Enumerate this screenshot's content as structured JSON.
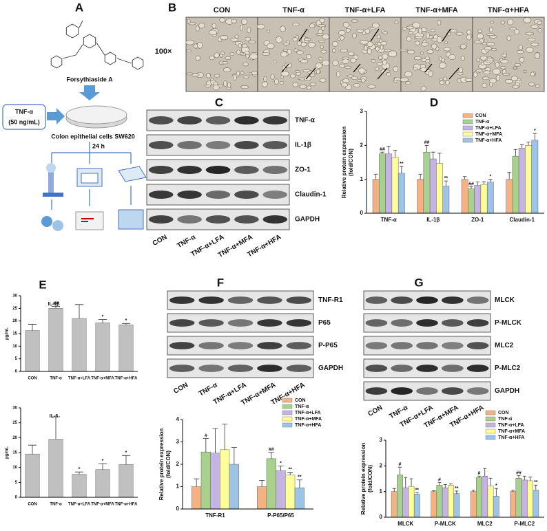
{
  "panel_a": {
    "label": "A",
    "compound": "Forsythiaside A",
    "treatment": "TNF-α",
    "dose": "(50 ng/mL)",
    "cells": "Colon epithelial cells SW620",
    "time": "24 h"
  },
  "panel_b": {
    "label": "B",
    "magnification": "100×",
    "groups": [
      "CON",
      "TNF-α",
      "TNF-α+LFA",
      "TNF-α+MFA",
      "TNF-α+HFA"
    ]
  },
  "panel_c": {
    "label": "C",
    "proteins": [
      "TNF-α",
      "IL-1β",
      "ZO-1",
      "Claudin-1",
      "GAPDH"
    ],
    "lanes": [
      "CON",
      "TNF-α",
      "TNF-α+LFA",
      "TNF-α+MFA",
      "TNF-α+HFA"
    ]
  },
  "panel_f_blot": {
    "label": "F",
    "proteins": [
      "TNF-R1",
      "P65",
      "P-P65",
      "GAPDH"
    ],
    "lanes": [
      "CON",
      "TNF-α",
      "TNF-α+LFA",
      "TNF-α+MFA",
      "TNF-α+HFA"
    ]
  },
  "panel_g_blot": {
    "label": "G",
    "proteins": [
      "MLCK",
      "P-MLCK",
      "MLC2",
      "P-MLC2",
      "GAPDH"
    ],
    "lanes": [
      "CON",
      "TNF-α",
      "TNF-α+LFA",
      "TNF-α+MFA",
      "TNF-α+HFA"
    ]
  },
  "chart_data": [
    {
      "panel": "D",
      "type": "bar",
      "ylabel": [
        "Relative protein expression",
        "(fold/CON)"
      ],
      "categories": [
        "TNF-α",
        "IL-1β",
        "ZO-1",
        "Claudin-1"
      ],
      "ylim": [
        0,
        3
      ],
      "yticks": [
        0,
        1,
        2,
        3
      ],
      "series": [
        {
          "name": "CON",
          "color": "#f4b183",
          "values": [
            1.0,
            1.0,
            1.0,
            1.0
          ],
          "errors": [
            0.15,
            0.15,
            0.08,
            0.2
          ],
          "marks": [
            null,
            null,
            null,
            null
          ]
        },
        {
          "name": "TNF-α",
          "color": "#a9d18e",
          "values": [
            1.75,
            1.8,
            0.72,
            1.68
          ],
          "errors": [
            0.05,
            0.2,
            0.06,
            0.2
          ],
          "marks": [
            "##",
            "##",
            "##",
            null
          ]
        },
        {
          "name": "TNF-α+LFA",
          "color": "#c5b4e3",
          "values": [
            1.75,
            1.6,
            0.82,
            1.92
          ],
          "errors": [
            0.22,
            0.2,
            0.1,
            0.1
          ],
          "marks": [
            null,
            null,
            null,
            null
          ]
        },
        {
          "name": "TNF-α+MFA",
          "color": "#ffff99",
          "values": [
            1.65,
            1.47,
            0.85,
            2.0
          ],
          "errors": [
            0.2,
            0.3,
            0.08,
            0.1
          ],
          "marks": [
            null,
            null,
            null,
            null
          ]
        },
        {
          "name": "TNF-α+HFA",
          "color": "#9dc3e6",
          "values": [
            1.18,
            0.8,
            0.92,
            2.15
          ],
          "errors": [
            0.2,
            0.15,
            0.08,
            0.2
          ],
          "marks": [
            "**",
            "**",
            "*",
            "*"
          ]
        }
      ]
    },
    {
      "panel": "E",
      "type": "bar",
      "title": "IL-1β",
      "ylabel": "pg/mL",
      "categories": [
        "CON",
        "TNF-α",
        "TNF-α+LFA",
        "TNF-α+MFA",
        "TNF-α+HFA"
      ],
      "ylim": [
        0,
        30
      ],
      "yticks": [
        0,
        5,
        10,
        15,
        20,
        25,
        30
      ],
      "series": [
        {
          "color": "#c0c0c0",
          "values": [
            16.2,
            25,
            21,
            19.3,
            18.5
          ],
          "errors": [
            2.5,
            0.8,
            5.5,
            1.3,
            0.5
          ],
          "marks": [
            null,
            "##",
            null,
            "*",
            "*"
          ]
        }
      ]
    },
    {
      "type": "bar",
      "title": "IL-6",
      "ylabel": "pg/mL",
      "categories": [
        "CON",
        "TNF-α",
        "TNF-α+LFA",
        "TNF-α+MFA",
        "TNF-α+HFA"
      ],
      "ylim": [
        0,
        30
      ],
      "yticks": [
        0,
        5,
        10,
        15,
        20,
        25,
        30
      ],
      "series": [
        {
          "color": "#c0c0c0",
          "values": [
            14.5,
            19.5,
            7.7,
            9.3,
            11
          ],
          "errors": [
            3,
            7.5,
            0.8,
            2,
            3
          ],
          "marks": [
            null,
            null,
            "*",
            "*",
            "*"
          ]
        }
      ]
    },
    {
      "type": "bar",
      "ylabel": [
        "Relative protein expression",
        "(fold/CON)"
      ],
      "categories": [
        "TNF-R1",
        "P-P65/P65"
      ],
      "ylim": [
        0,
        4
      ],
      "yticks": [
        0,
        1,
        2,
        3,
        4
      ],
      "series": [
        {
          "name": "CON",
          "color": "#f4b183",
          "values": [
            1.0,
            1.0
          ],
          "errors": [
            0.35,
            0.28
          ],
          "marks": [
            null,
            null
          ]
        },
        {
          "name": "TNF-α",
          "color": "#a9d18e",
          "values": [
            2.55,
            2.25
          ],
          "errors": [
            0.6,
            0.28
          ],
          "marks": [
            "#",
            "##"
          ]
        },
        {
          "name": "TNF-α+LFA",
          "color": "#c5b4e3",
          "values": [
            2.5,
            1.72
          ],
          "errors": [
            1.1,
            0.2
          ],
          "marks": [
            null,
            "*"
          ]
        },
        {
          "name": "TNF-α+MFA",
          "color": "#ffff99",
          "values": [
            2.65,
            1.52
          ],
          "errors": [
            1.15,
            0.12
          ],
          "marks": [
            null,
            "**"
          ]
        },
        {
          "name": "TNF-α+HFA",
          "color": "#9dc3e6",
          "values": [
            2.0,
            0.95
          ],
          "errors": [
            0.75,
            0.35
          ],
          "marks": [
            null,
            "**"
          ]
        }
      ]
    },
    {
      "type": "bar",
      "ylabel": [
        "Relative protein expression",
        "(fold/CON)"
      ],
      "categories": [
        "MLCK",
        "P-MLCK",
        "MLC2",
        "P-MLC2"
      ],
      "ylim": [
        0,
        3
      ],
      "yticks": [
        0,
        1,
        2,
        3
      ],
      "series": [
        {
          "name": "CON",
          "color": "#f4b183",
          "values": [
            1.0,
            1.0,
            1.0,
            1.0
          ],
          "errors": [
            0.12,
            0.03,
            0.05,
            0.05
          ],
          "marks": [
            null,
            null,
            null,
            null
          ]
        },
        {
          "name": "TNF-α",
          "color": "#a9d18e",
          "values": [
            1.65,
            1.25,
            1.55,
            1.52
          ],
          "errors": [
            0.3,
            0.1,
            0.05,
            0.1
          ],
          "marks": [
            "#",
            "#",
            "#",
            "##"
          ]
        },
        {
          "name": "TNF-α+LFA",
          "color": "#c5b4e3",
          "values": [
            1.15,
            1.15,
            1.6,
            1.45
          ],
          "errors": [
            0.4,
            0.12,
            0.3,
            0.15
          ],
          "marks": [
            null,
            null,
            null,
            null
          ]
        },
        {
          "name": "TNF-α+MFA",
          "color": "#ffff99",
          "values": [
            1.2,
            1.25,
            1.22,
            1.42
          ],
          "errors": [
            0.3,
            0.05,
            0.3,
            0.15
          ],
          "marks": [
            null,
            null,
            null,
            null
          ]
        },
        {
          "name": "TNF-α+HFA",
          "color": "#9dc3e6",
          "values": [
            0.9,
            0.92,
            0.82,
            1.05
          ],
          "errors": [
            0.05,
            0.1,
            0.3,
            0.2
          ],
          "marks": [
            "**",
            "**",
            "*",
            "**"
          ]
        }
      ]
    }
  ]
}
